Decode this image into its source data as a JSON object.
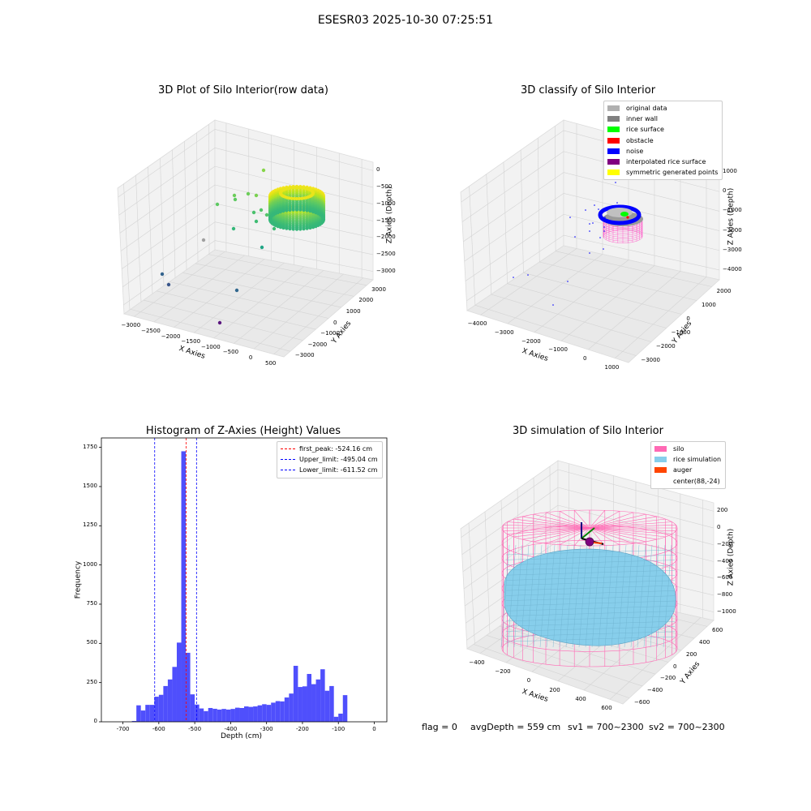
{
  "figure": {
    "suptitle": "ESESR03 2025-10-30 07:25:51",
    "status": {
      "flag": "flag = 0",
      "avg_depth": "avgDepth = 559 cm",
      "sv1": "sv1 = 700~2300",
      "sv2": "sv2 = 700~2300"
    }
  },
  "chart_data": [
    {
      "type": "scatter",
      "projection": "3d",
      "title": "3D Plot of Silo Interior(row data)",
      "xlabel": "X Axies",
      "ylabel": "Y Axies",
      "zlabel": "Z Axies (Depth)",
      "x_ticks": [
        "−3000",
        "−2500",
        "−2000",
        "−1500",
        "−1000",
        "−500",
        "0",
        "500"
      ],
      "y_ticks": [
        "3000",
        "2000",
        "1000",
        "0",
        "−1000",
        "−2000",
        "−3000"
      ],
      "z_ticks": [
        "0",
        "−500",
        "−1000",
        "−1500",
        "−2000",
        "−2500",
        "−3000"
      ],
      "colormap": "viridis",
      "grid": true
    },
    {
      "type": "scatter",
      "projection": "3d",
      "title": "3D classify of Silo Interior",
      "xlabel": "X Axies",
      "ylabel": "Y Axies",
      "zlabel": "Z Axies (Depth)",
      "x_ticks": [
        "−4000",
        "−3000",
        "−2000",
        "−1000",
        "0",
        "1000"
      ],
      "y_ticks": [
        "2000",
        "1000",
        "0",
        "−1000",
        "−2000",
        "−3000"
      ],
      "z_ticks": [
        "1000",
        "0",
        "−1000",
        "−2000",
        "−3000",
        "−4000"
      ],
      "legend": [
        {
          "label": "original data",
          "color": "#b0b0b0"
        },
        {
          "label": "inner wall",
          "color": "#808080"
        },
        {
          "label": "rice surface",
          "color": "#00ff00"
        },
        {
          "label": "obstacle",
          "color": "#ff0000"
        },
        {
          "label": "noise",
          "color": "#0000ff"
        },
        {
          "label": "interpolated rice surface",
          "color": "#800080"
        },
        {
          "label": "symmetric generated points",
          "color": "#ffff00"
        }
      ],
      "legend_position": "top-right",
      "grid": true
    },
    {
      "type": "bar",
      "title": "Histogram of Z-Axies (Height) Values",
      "xlabel": "Depth (cm)",
      "ylabel": "Frequency",
      "xlim": [
        -760,
        35
      ],
      "ylim": [
        0,
        1810
      ],
      "x_ticks": [
        -700,
        -600,
        -500,
        -400,
        -300,
        -200,
        -100,
        0
      ],
      "y_ticks": [
        0,
        250,
        500,
        750,
        1000,
        1250,
        1500,
        1750
      ],
      "bin_width": 12.5,
      "bins": [
        {
          "x0": -675,
          "count": 5
        },
        {
          "x0": -662.5,
          "count": 105
        },
        {
          "x0": -650,
          "count": 72
        },
        {
          "x0": -637.5,
          "count": 108
        },
        {
          "x0": -625,
          "count": 108
        },
        {
          "x0": -612.5,
          "count": 160
        },
        {
          "x0": -600,
          "count": 172
        },
        {
          "x0": -587.5,
          "count": 228
        },
        {
          "x0": -575,
          "count": 270
        },
        {
          "x0": -562.5,
          "count": 350
        },
        {
          "x0": -550,
          "count": 505
        },
        {
          "x0": -537.5,
          "count": 1725
        },
        {
          "x0": -525,
          "count": 440
        },
        {
          "x0": -512.5,
          "count": 175
        },
        {
          "x0": -500,
          "count": 110
        },
        {
          "x0": -487.5,
          "count": 85
        },
        {
          "x0": -475,
          "count": 68
        },
        {
          "x0": -462.5,
          "count": 88
        },
        {
          "x0": -450,
          "count": 83
        },
        {
          "x0": -437.5,
          "count": 78
        },
        {
          "x0": -425,
          "count": 82
        },
        {
          "x0": -412.5,
          "count": 78
        },
        {
          "x0": -400,
          "count": 82
        },
        {
          "x0": -387.5,
          "count": 90
        },
        {
          "x0": -375,
          "count": 88
        },
        {
          "x0": -362.5,
          "count": 98
        },
        {
          "x0": -350,
          "count": 95
        },
        {
          "x0": -337.5,
          "count": 98
        },
        {
          "x0": -325,
          "count": 105
        },
        {
          "x0": -312.5,
          "count": 112
        },
        {
          "x0": -300,
          "count": 108
        },
        {
          "x0": -287.5,
          "count": 122
        },
        {
          "x0": -275,
          "count": 132
        },
        {
          "x0": -262.5,
          "count": 130
        },
        {
          "x0": -250,
          "count": 155
        },
        {
          "x0": -237.5,
          "count": 180
        },
        {
          "x0": -225,
          "count": 357
        },
        {
          "x0": -212.5,
          "count": 222
        },
        {
          "x0": -200,
          "count": 226
        },
        {
          "x0": -187.5,
          "count": 305
        },
        {
          "x0": -175,
          "count": 240
        },
        {
          "x0": -162.5,
          "count": 270
        },
        {
          "x0": -150,
          "count": 335
        },
        {
          "x0": -137.5,
          "count": 198
        },
        {
          "x0": -125,
          "count": 228
        },
        {
          "x0": -112.5,
          "count": 32
        },
        {
          "x0": -100,
          "count": 52
        },
        {
          "x0": -87.5,
          "count": 170
        }
      ],
      "bars_offset_note": "",
      "vlines": [
        {
          "label": "first_peak: -524.16 cm",
          "value": -524.16,
          "color": "#ff0000"
        },
        {
          "label": "Upper_limit: -495.04 cm",
          "value": -495.04,
          "color": "#0000ff"
        },
        {
          "label": "Lower_limit: -611.52 cm",
          "value": -611.52,
          "color": "#0000ff"
        }
      ],
      "bar_color": "#4f4ffc",
      "legend_position": "top-right",
      "grid": false
    },
    {
      "type": "surface",
      "projection": "3d",
      "title": "3D simulation of Silo Interior",
      "xlabel": "X Axies",
      "ylabel": "Y Axies",
      "zlabel": "Z Axies (Depth)",
      "x_ticks": [
        "−400",
        "−200",
        "0",
        "200",
        "400",
        "600"
      ],
      "y_ticks": [
        "600",
        "400",
        "200",
        "0",
        "−200",
        "−400",
        "−600"
      ],
      "z_ticks": [
        "200",
        "0",
        "−200",
        "−400",
        "−600",
        "−800",
        "−1000"
      ],
      "legend": [
        {
          "label": "silo",
          "color": "#ff69b4"
        },
        {
          "label": "rice simulation",
          "color": "#87ceeb"
        },
        {
          "label": "auger",
          "color": "#ff4500"
        },
        {
          "label": "center(88,-24)",
          "color": ""
        }
      ],
      "legend_position": "top-right",
      "grid": true
    }
  ]
}
